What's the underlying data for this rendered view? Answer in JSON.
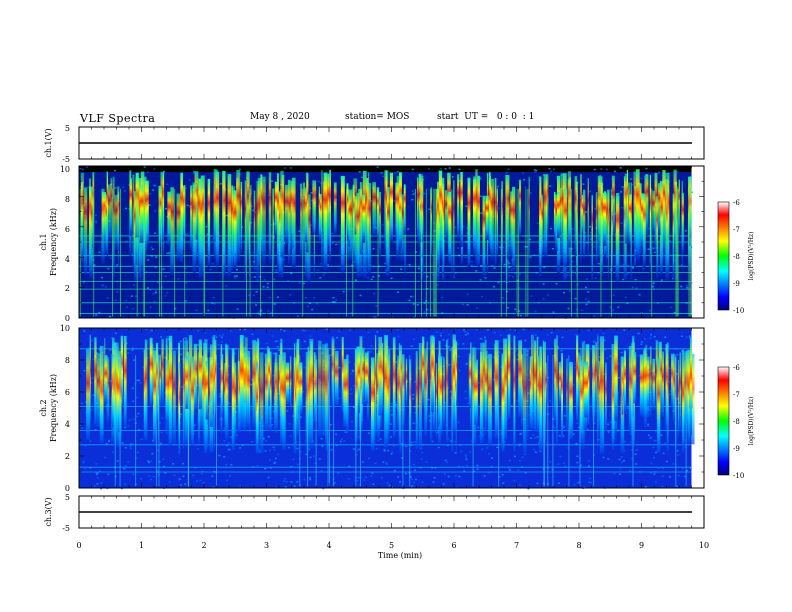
{
  "header": {
    "title": "VLF Spectra",
    "date": "May 8 , 2020",
    "station": "station= MOS",
    "start": "start  UT =   0 : 0  : 1"
  },
  "chart_data": [
    {
      "type": "line",
      "panel": "ch1-voltage",
      "ylabel": "ch.1(V)",
      "yticks": [
        "5",
        "-5"
      ],
      "ylim": [
        -5,
        5
      ],
      "xlim": [
        0,
        10
      ],
      "series": [
        {
          "x": [
            0,
            9.8
          ],
          "values": [
            0,
            0
          ]
        }
      ]
    },
    {
      "type": "heatmap",
      "panel": "ch1-spectrogram",
      "ylabel": "ch.1",
      "ylabel2": "Frequency (kHz)",
      "yticks": [
        "0",
        "2",
        "4",
        "6",
        "8",
        "10"
      ],
      "ylim": [
        0,
        10
      ],
      "xlim": [
        0,
        10
      ],
      "data_extent_min": 9.8,
      "band_center_khz": 7.0,
      "saturated_top_khz": 9.6,
      "colorbar": {
        "label": "log(PSD)(V²/Hz)",
        "ticks": [
          "-6",
          "-7",
          "-8",
          "-9",
          "-10"
        ],
        "range": [
          -10,
          -6
        ]
      }
    },
    {
      "type": "heatmap",
      "panel": "ch2-spectrogram",
      "ylabel": "ch.2",
      "ylabel2": "Frequency (kHz)",
      "yticks": [
        "0",
        "2",
        "4",
        "6",
        "8",
        "10"
      ],
      "ylim": [
        0,
        10
      ],
      "xlim": [
        0,
        10
      ],
      "data_extent_min": 9.8,
      "band_center_khz": 6.8,
      "colorbar": {
        "label": "log(PSD)(V²/Hz)",
        "ticks": [
          "-6",
          "-7",
          "-8",
          "-9",
          "-10"
        ],
        "range": [
          -10,
          -6
        ]
      }
    },
    {
      "type": "line",
      "panel": "ch3-voltage",
      "ylabel": "ch.3(V)",
      "yticks": [
        "5",
        "-5"
      ],
      "ylim": [
        -5,
        5
      ],
      "xlim": [
        0,
        10
      ],
      "xlabel": "Time  (min)",
      "xticks": [
        "0",
        "1",
        "2",
        "3",
        "4",
        "5",
        "6",
        "7",
        "8",
        "9",
        "10"
      ],
      "series": [
        {
          "x": [
            0,
            9.8
          ],
          "values": [
            0,
            0
          ]
        }
      ]
    }
  ]
}
